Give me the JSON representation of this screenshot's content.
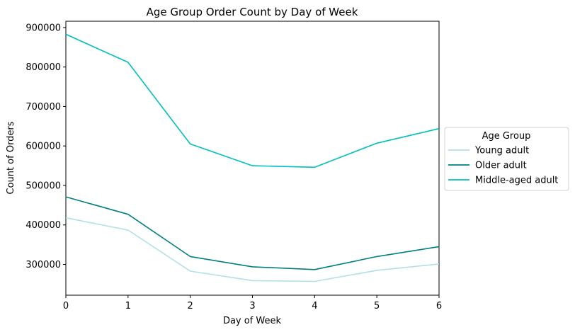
{
  "chart_data": {
    "type": "line",
    "title": "Age Group Order Count by Day of Week",
    "xlabel": "Day of Week",
    "ylabel": "Count of Orders",
    "x": [
      0,
      1,
      2,
      3,
      4,
      5,
      6
    ],
    "x_ticks": [
      "0",
      "1",
      "2",
      "3",
      "4",
      "5",
      "6"
    ],
    "xlim": [
      0,
      6
    ],
    "ylim": [
      222000,
      916000
    ],
    "y_ticks": [
      300000,
      400000,
      500000,
      600000,
      700000,
      800000,
      900000
    ],
    "y_tick_labels": [
      "300000",
      "400000",
      "500000",
      "600000",
      "700000",
      "800000",
      "900000"
    ],
    "grid": false,
    "legend": {
      "title": "Age Group",
      "placement": "center-right-outside"
    },
    "series": [
      {
        "name": "Young adult",
        "color": "#b0e0e6",
        "values": [
          418000,
          387000,
          283000,
          259000,
          257000,
          285000,
          301000
        ]
      },
      {
        "name": "Older adult",
        "color": "#008080",
        "values": [
          471000,
          427000,
          320000,
          294000,
          287000,
          320000,
          345000
        ]
      },
      {
        "name": "Middle-aged adult",
        "color": "#00bfbf",
        "values": [
          883000,
          812000,
          605000,
          550000,
          546000,
          607000,
          644000
        ]
      }
    ]
  }
}
